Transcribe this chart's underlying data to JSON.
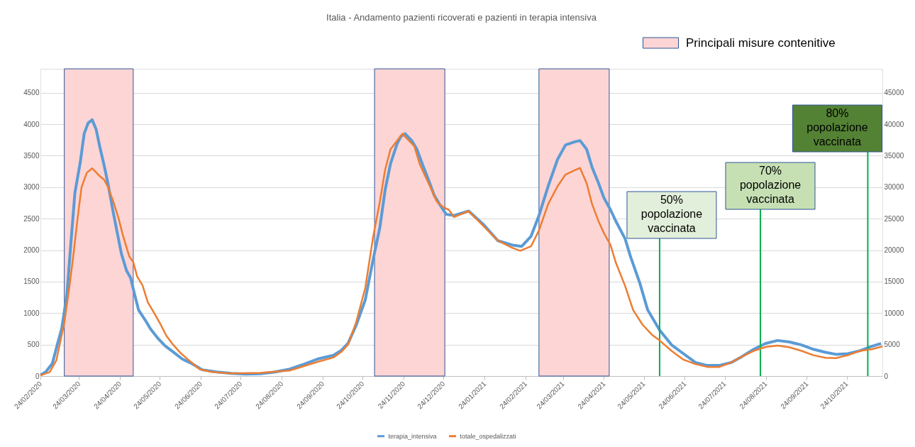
{
  "chart_data": {
    "type": "line",
    "title": "Italia - Andamento pazienti ricoverati e pazienti in terapia intensiva",
    "xlim": [
      "2020-02-24",
      "2021-11-20"
    ],
    "xticks": [
      {
        "value": "2020-02-24",
        "label": "24/02/2020"
      },
      {
        "value": "2020-03-24",
        "label": "24/03/2020"
      },
      {
        "value": "2020-04-24",
        "label": "24/04/2020"
      },
      {
        "value": "2020-05-24",
        "label": "24/05/2020"
      },
      {
        "value": "2020-06-24",
        "label": "24/06/2020"
      },
      {
        "value": "2020-07-24",
        "label": "24/07/2020"
      },
      {
        "value": "2020-08-24",
        "label": "24/08/2020"
      },
      {
        "value": "2020-09-24",
        "label": "24/09/2020"
      },
      {
        "value": "2020-10-24",
        "label": "24/10/2020"
      },
      {
        "value": "2020-11-24",
        "label": "24/11/2020"
      },
      {
        "value": "2020-12-24",
        "label": "24/12/2020"
      },
      {
        "value": "2021-01-24",
        "label": "24/01/2021"
      },
      {
        "value": "2021-02-24",
        "label": "24/02/2021"
      },
      {
        "value": "2021-03-24",
        "label": "24/03/2021"
      },
      {
        "value": "2021-04-24",
        "label": "24/04/2021"
      },
      {
        "value": "2021-05-24",
        "label": "24/05/2021"
      },
      {
        "value": "2021-06-24",
        "label": "24/06/2021"
      },
      {
        "value": "2021-07-24",
        "label": "24/07/2021"
      },
      {
        "value": "2021-08-24",
        "label": "24/08/2021"
      },
      {
        "value": "2021-09-24",
        "label": "24/09/2021"
      },
      {
        "value": "2021-10-24",
        "label": "24/10/2021"
      }
    ],
    "ylim": [
      0,
      4880
    ],
    "yticks": [
      0,
      500,
      1000,
      1500,
      2000,
      2500,
      3000,
      3500,
      4000,
      4500
    ],
    "y2lim": [
      0,
      48800
    ],
    "y2ticks": [
      0,
      5000,
      10000,
      15000,
      20000,
      25000,
      30000,
      35000,
      40000,
      45000
    ],
    "grid": "y",
    "legend": "bottom",
    "series": [
      {
        "name": "terapia_intensiva",
        "axis": "y",
        "color": "#5b9bd5",
        "x": [
          "2020-02-24",
          "2020-02-28",
          "2020-03-04",
          "2020-03-08",
          "2020-03-11",
          "2020-03-15",
          "2020-03-18",
          "2020-03-21",
          "2020-03-25",
          "2020-03-28",
          "2020-03-31",
          "2020-04-03",
          "2020-04-06",
          "2020-04-09",
          "2020-04-12",
          "2020-04-15",
          "2020-04-19",
          "2020-04-22",
          "2020-04-25",
          "2020-04-29",
          "2020-05-02",
          "2020-05-05",
          "2020-05-08",
          "2020-05-13",
          "2020-05-17",
          "2020-05-23",
          "2020-05-28",
          "2020-06-03",
          "2020-06-10",
          "2020-06-17",
          "2020-06-25",
          "2020-07-06",
          "2020-07-17",
          "2020-07-28",
          "2020-08-08",
          "2020-08-19",
          "2020-08-30",
          "2020-09-10",
          "2020-09-20",
          "2020-10-02",
          "2020-10-08",
          "2020-10-13",
          "2020-10-19",
          "2020-10-26",
          "2020-11-01",
          "2020-11-06",
          "2020-11-10",
          "2020-11-14",
          "2020-11-19",
          "2020-11-22",
          "2020-11-25",
          "2020-11-30",
          "2020-12-04",
          "2020-12-08",
          "2020-12-13",
          "2020-12-17",
          "2020-12-21",
          "2020-12-26",
          "2021-01-01",
          "2021-01-12",
          "2021-01-23",
          "2021-02-03",
          "2021-02-14",
          "2021-02-21",
          "2021-02-28",
          "2021-03-06",
          "2021-03-13",
          "2021-03-20",
          "2021-03-26",
          "2021-04-02",
          "2021-04-06",
          "2021-04-11",
          "2021-04-15",
          "2021-04-20",
          "2021-04-24",
          "2021-04-29",
          "2021-05-03",
          "2021-05-10",
          "2021-05-14",
          "2021-05-21",
          "2021-05-27",
          "2021-06-05",
          "2021-06-14",
          "2021-06-23",
          "2021-07-02",
          "2021-07-11",
          "2021-07-20",
          "2021-07-29",
          "2021-08-06",
          "2021-08-15",
          "2021-08-24",
          "2021-09-02",
          "2021-09-11",
          "2021-09-20",
          "2021-09-29",
          "2021-10-08",
          "2021-10-16",
          "2021-10-25",
          "2021-11-03",
          "2021-11-12",
          "2021-11-19"
        ],
        "values": [
          18,
          64,
          200,
          520,
          750,
          1300,
          2120,
          2910,
          3390,
          3850,
          4020,
          4070,
          3920,
          3620,
          3350,
          3050,
          2590,
          2270,
          1950,
          1670,
          1560,
          1300,
          1050,
          890,
          750,
          590,
          480,
          385,
          270,
          200,
          100,
          64,
          41,
          32,
          37,
          64,
          110,
          190,
          270,
          330,
          410,
          520,
          800,
          1210,
          1860,
          2360,
          2960,
          3370,
          3690,
          3810,
          3850,
          3740,
          3600,
          3370,
          3100,
          2870,
          2730,
          2570,
          2550,
          2620,
          2410,
          2150,
          2080,
          2060,
          2220,
          2550,
          3020,
          3440,
          3670,
          3720,
          3740,
          3600,
          3320,
          3060,
          2830,
          2640,
          2460,
          2180,
          1900,
          1480,
          1050,
          730,
          495,
          355,
          215,
          168,
          168,
          215,
          308,
          425,
          518,
          565,
          541,
          495,
          425,
          378,
          345,
          355,
          401,
          471,
          518
        ]
      },
      {
        "name": "totale_ospedalizzati",
        "axis": "y2",
        "color": "#ed7d31",
        "x": [
          "2020-02-24",
          "2020-03-02",
          "2020-03-07",
          "2020-03-13",
          "2020-03-17",
          "2020-03-20",
          "2020-03-23",
          "2020-03-26",
          "2020-03-30",
          "2020-04-03",
          "2020-04-08",
          "2020-04-12",
          "2020-04-15",
          "2020-04-19",
          "2020-04-23",
          "2020-04-26",
          "2020-05-01",
          "2020-05-04",
          "2020-05-07",
          "2020-05-11",
          "2020-05-15",
          "2020-05-19",
          "2020-05-24",
          "2020-05-29",
          "2020-06-03",
          "2020-06-09",
          "2020-06-15",
          "2020-06-23",
          "2020-07-02",
          "2020-07-17",
          "2020-08-08",
          "2020-08-30",
          "2020-09-20",
          "2020-10-02",
          "2020-10-08",
          "2020-10-13",
          "2020-10-19",
          "2020-10-26",
          "2020-11-01",
          "2020-11-06",
          "2020-11-10",
          "2020-11-14",
          "2020-11-19",
          "2020-11-23",
          "2020-11-27",
          "2020-12-02",
          "2020-12-06",
          "2020-12-11",
          "2020-12-15",
          "2020-12-19",
          "2020-12-24",
          "2020-12-28",
          "2021-01-01",
          "2021-01-12",
          "2021-01-23",
          "2021-02-03",
          "2021-02-14",
          "2021-02-20",
          "2021-02-28",
          "2021-03-06",
          "2021-03-13",
          "2021-03-20",
          "2021-03-26",
          "2021-04-02",
          "2021-04-06",
          "2021-04-11",
          "2021-04-15",
          "2021-04-20",
          "2021-04-24",
          "2021-04-29",
          "2021-05-03",
          "2021-05-10",
          "2021-05-16",
          "2021-05-23",
          "2021-05-30",
          "2021-06-05",
          "2021-06-14",
          "2021-06-23",
          "2021-07-02",
          "2021-07-11",
          "2021-07-20",
          "2021-07-29",
          "2021-08-06",
          "2021-08-15",
          "2021-08-24",
          "2021-09-02",
          "2021-09-11",
          "2021-09-20",
          "2021-09-29",
          "2021-10-08",
          "2021-10-16",
          "2021-10-25",
          "2021-11-03",
          "2021-11-12",
          "2021-11-20"
        ],
        "values": [
          90,
          640,
          2500,
          8450,
          14400,
          19500,
          25000,
          30000,
          32300,
          33000,
          31900,
          31200,
          30000,
          27700,
          25000,
          22500,
          19000,
          18100,
          15800,
          14400,
          11700,
          10300,
          8450,
          6400,
          5000,
          3600,
          2500,
          1100,
          640,
          410,
          510,
          870,
          2250,
          2940,
          3850,
          5000,
          8450,
          14000,
          22200,
          27700,
          32800,
          36000,
          37400,
          38500,
          37600,
          36500,
          33700,
          31400,
          29600,
          27700,
          26800,
          26400,
          25250,
          26200,
          23850,
          21500,
          20350,
          19900,
          20600,
          23150,
          27350,
          30150,
          32000,
          32700,
          33050,
          30600,
          27350,
          24550,
          22700,
          20800,
          18000,
          14300,
          10500,
          8200,
          6600,
          5650,
          4000,
          2600,
          1900,
          1450,
          1450,
          2150,
          3080,
          4000,
          4620,
          4850,
          4570,
          4000,
          3310,
          2900,
          2850,
          3310,
          4000,
          4250,
          4710
        ]
      }
    ],
    "bands": [
      {
        "axis": "x",
        "from": "2020-03-13",
        "to": "2020-05-04",
        "label": "Principali misure contenitive",
        "color": "#fdd5d5"
      },
      {
        "axis": "x",
        "from": "2020-11-02",
        "to": "2020-12-25",
        "color": "#fdd5d5"
      },
      {
        "axis": "x",
        "from": "2021-03-06",
        "to": "2021-04-28",
        "color": "#fdd5d5"
      }
    ],
    "ref_lines": [
      {
        "axis": "x",
        "value": "2021-06-05",
        "label": "50% popolazione vaccinata",
        "color": "#00b050"
      },
      {
        "axis": "x",
        "value": "2021-08-20",
        "label": "70% popolazione vaccinata",
        "color": "#00b050"
      },
      {
        "axis": "x",
        "value": "2021-11-09",
        "label": "80% popolazione vaccinata",
        "color": "#00b050"
      }
    ]
  }
}
